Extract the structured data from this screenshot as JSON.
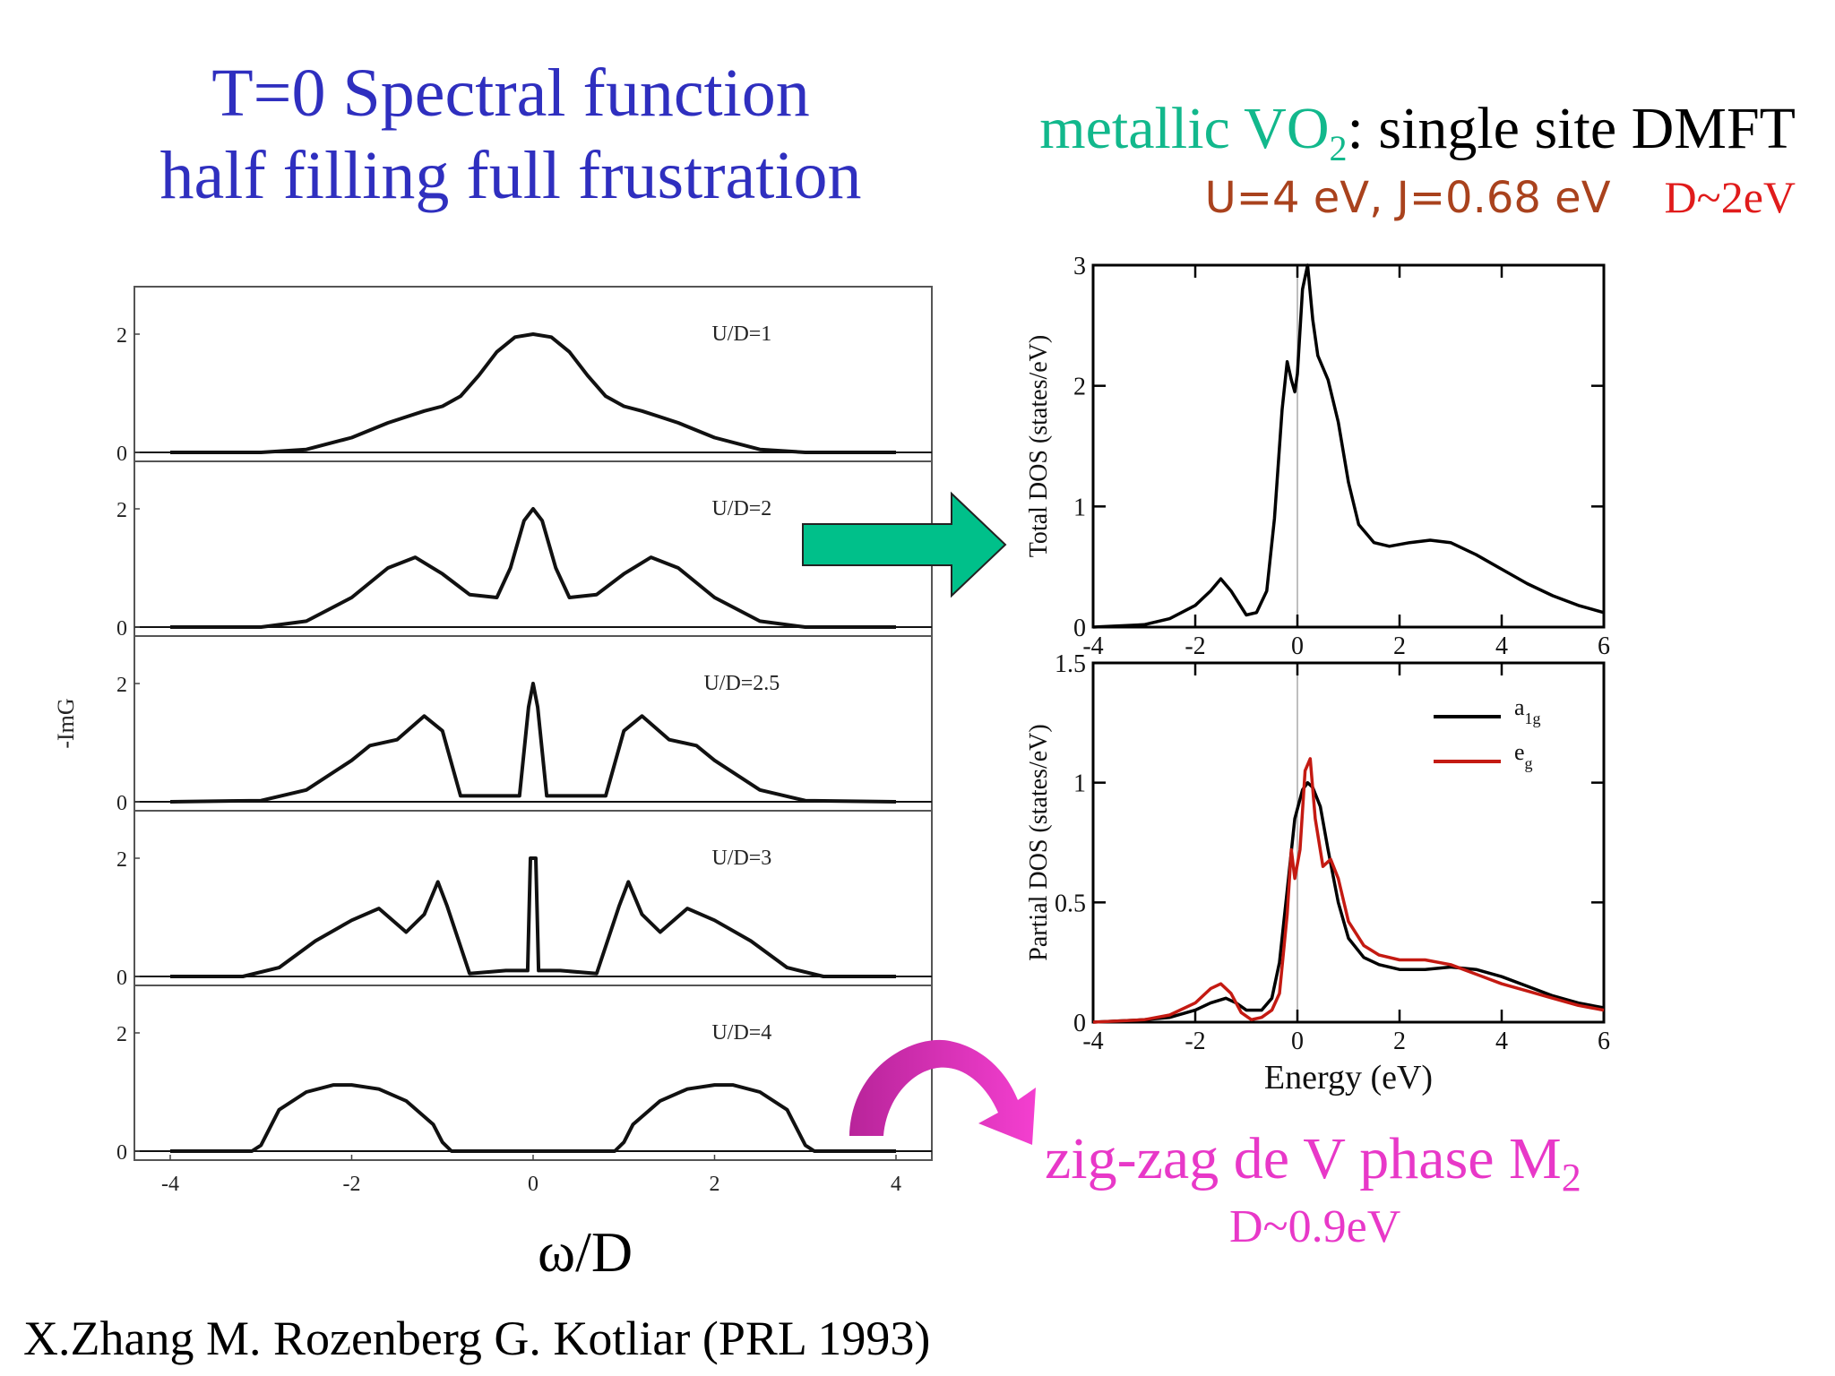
{
  "titles": {
    "left_line1": "T=0 Spectral function",
    "left_line2": "half filling full frustration",
    "right_prefix": "metallic ",
    "right_vo": "VO",
    "right_sub": "2",
    "right_suffix": ": single site DMFT",
    "params_u": "U=4 eV, J=0.68 eV",
    "params_d": "D~2eV",
    "zigzag_main": "zig-zag de V phase M",
    "zigzag_sub": "2",
    "zigzag_d": "D~0.9eV",
    "omega_label": "ω/D",
    "citation": "X.Zhang M. Rozenberg G. Kotliar (PRL 1993)"
  },
  "colors": {
    "title_blue": "#2f2fbf",
    "teal": "#12b88c",
    "params_brown": "#a9421d",
    "red": "#e01b1b",
    "magenta": "#e838c8",
    "arrow_green": "#00c08a",
    "eg_red": "#c41a12"
  },
  "chart_data": [
    {
      "type": "line",
      "title": "",
      "ylabel": "-ImG",
      "xlabel": "ω/D",
      "xlim": [
        -4,
        4
      ],
      "xticks": [
        "-4",
        "-2",
        "0",
        "2",
        "4"
      ],
      "ylim": [
        0,
        2.5
      ],
      "yticks": [
        "0",
        "2"
      ],
      "panels": [
        {
          "label": "U/D=1",
          "x": [
            -4,
            -3.0,
            -2.5,
            -2.0,
            -1.6,
            -1.4,
            -1.2,
            -1.0,
            -0.8,
            -0.6,
            -0.4,
            -0.2,
            0,
            0.2,
            0.4,
            0.6,
            0.8,
            1.0,
            1.2,
            1.4,
            1.6,
            2.0,
            2.5,
            3.0,
            4
          ],
          "y": [
            0,
            0,
            0.05,
            0.25,
            0.5,
            0.6,
            0.7,
            0.78,
            0.95,
            1.3,
            1.7,
            1.95,
            2.0,
            1.95,
            1.7,
            1.3,
            0.95,
            0.78,
            0.7,
            0.6,
            0.5,
            0.25,
            0.05,
            0,
            0
          ]
        },
        {
          "label": "U/D=2",
          "x": [
            -4,
            -3.0,
            -2.5,
            -2.0,
            -1.6,
            -1.3,
            -1.0,
            -0.7,
            -0.4,
            -0.25,
            -0.1,
            0,
            0.1,
            0.25,
            0.4,
            0.7,
            1.0,
            1.3,
            1.6,
            2.0,
            2.5,
            3.0,
            4
          ],
          "y": [
            0,
            0,
            0.1,
            0.5,
            1.0,
            1.18,
            0.9,
            0.55,
            0.5,
            1.0,
            1.8,
            2.0,
            1.8,
            1.0,
            0.5,
            0.55,
            0.9,
            1.18,
            1.0,
            0.5,
            0.1,
            0,
            0
          ]
        },
        {
          "label": "U/D=2.5",
          "x": [
            -4,
            -3.0,
            -2.5,
            -2.0,
            -1.8,
            -1.5,
            -1.2,
            -1.0,
            -0.8,
            -0.4,
            -0.15,
            -0.05,
            0,
            0.05,
            0.15,
            0.4,
            0.8,
            1.0,
            1.2,
            1.5,
            1.8,
            2.0,
            2.5,
            3.0,
            4
          ],
          "y": [
            0,
            0.02,
            0.2,
            0.7,
            0.95,
            1.05,
            1.45,
            1.2,
            0.1,
            0.1,
            0.1,
            1.6,
            2.0,
            1.6,
            0.1,
            0.1,
            0.1,
            1.2,
            1.45,
            1.05,
            0.95,
            0.7,
            0.2,
            0.02,
            0
          ]
        },
        {
          "label": "U/D=3",
          "x": [
            -4,
            -3.2,
            -2.8,
            -2.4,
            -2.0,
            -1.7,
            -1.4,
            -1.2,
            -1.05,
            -0.95,
            -0.7,
            -0.3,
            -0.06,
            -0.03,
            0.03,
            0.06,
            0.3,
            0.7,
            0.95,
            1.05,
            1.2,
            1.4,
            1.7,
            2.0,
            2.4,
            2.8,
            3.2,
            4
          ],
          "y": [
            0,
            0,
            0.15,
            0.6,
            0.95,
            1.15,
            0.75,
            1.05,
            1.6,
            1.2,
            0.05,
            0.1,
            0.1,
            2.0,
            2.0,
            0.1,
            0.1,
            0.05,
            1.2,
            1.6,
            1.05,
            0.75,
            1.15,
            0.95,
            0.6,
            0.15,
            0,
            0
          ]
        },
        {
          "label": "U/D=4",
          "x": [
            -4,
            -3.1,
            -3.0,
            -2.8,
            -2.5,
            -2.2,
            -2.0,
            -1.7,
            -1.4,
            -1.1,
            -1.0,
            -0.9,
            0.9,
            1.0,
            1.1,
            1.4,
            1.7,
            2.0,
            2.2,
            2.5,
            2.8,
            3.0,
            3.1,
            4
          ],
          "y": [
            0,
            0,
            0.1,
            0.7,
            1.0,
            1.12,
            1.12,
            1.05,
            0.85,
            0.45,
            0.15,
            0,
            0,
            0.15,
            0.45,
            0.85,
            1.05,
            1.12,
            1.12,
            1.0,
            0.7,
            0.1,
            0,
            0
          ]
        }
      ]
    },
    {
      "type": "line",
      "title": "",
      "xlabel": "",
      "ylabel": "Total DOS (states/eV)",
      "xlim": [
        -4,
        6
      ],
      "xticks": [
        "-4",
        "-2",
        "0",
        "2",
        "4",
        "6"
      ],
      "ylim": [
        0,
        3
      ],
      "yticks": [
        "0",
        "1",
        "2",
        "3"
      ],
      "series": [
        {
          "x": [
            -4,
            -3.0,
            -2.5,
            -2.0,
            -1.7,
            -1.5,
            -1.3,
            -1.0,
            -0.8,
            -0.6,
            -0.45,
            -0.3,
            -0.2,
            -0.12,
            -0.05,
            0,
            0.1,
            0.2,
            0.3,
            0.4,
            0.6,
            0.8,
            1.0,
            1.2,
            1.5,
            1.8,
            2.2,
            2.6,
            3.0,
            3.5,
            4.0,
            4.5,
            5.0,
            5.5,
            6.0
          ],
          "y": [
            0,
            0.02,
            0.07,
            0.18,
            0.3,
            0.4,
            0.3,
            0.1,
            0.12,
            0.3,
            0.9,
            1.8,
            2.2,
            2.05,
            1.95,
            2.1,
            2.8,
            3.0,
            2.55,
            2.25,
            2.05,
            1.7,
            1.2,
            0.85,
            0.7,
            0.67,
            0.7,
            0.72,
            0.7,
            0.6,
            0.48,
            0.36,
            0.26,
            0.18,
            0.12
          ]
        }
      ]
    },
    {
      "type": "line",
      "title": "",
      "xlabel": "Energy (eV)",
      "ylabel": "Partial DOS (states/eV)",
      "xlim": [
        -4,
        6
      ],
      "xticks": [
        "-4",
        "-2",
        "0",
        "2",
        "4",
        "6"
      ],
      "ylim": [
        0,
        1.5
      ],
      "yticks": [
        "0",
        "0.5",
        "1",
        "1.5"
      ],
      "legend_position": "top-right",
      "series": [
        {
          "name": "a",
          "name_sub": "1g",
          "color": "#000000",
          "x": [
            -4,
            -3.0,
            -2.5,
            -2.0,
            -1.7,
            -1.4,
            -1.2,
            -1.0,
            -0.7,
            -0.5,
            -0.35,
            -0.2,
            -0.05,
            0.1,
            0.2,
            0.3,
            0.45,
            0.6,
            0.8,
            1.0,
            1.3,
            1.6,
            2.0,
            2.5,
            3.0,
            3.5,
            4.0,
            4.5,
            5.0,
            5.5,
            6.0
          ],
          "y": [
            0,
            0.01,
            0.02,
            0.05,
            0.08,
            0.1,
            0.08,
            0.05,
            0.05,
            0.1,
            0.25,
            0.55,
            0.85,
            0.97,
            1.0,
            0.98,
            0.9,
            0.72,
            0.5,
            0.35,
            0.27,
            0.24,
            0.22,
            0.22,
            0.23,
            0.22,
            0.19,
            0.15,
            0.11,
            0.08,
            0.06
          ]
        },
        {
          "name": "e",
          "name_sub": "g",
          "color": "#c41a12",
          "x": [
            -4,
            -3.0,
            -2.5,
            -2.0,
            -1.7,
            -1.5,
            -1.3,
            -1.1,
            -0.9,
            -0.7,
            -0.5,
            -0.35,
            -0.2,
            -0.12,
            -0.05,
            0.05,
            0.15,
            0.25,
            0.35,
            0.5,
            0.65,
            0.8,
            1.0,
            1.3,
            1.6,
            2.0,
            2.5,
            3.0,
            3.5,
            4.0,
            4.5,
            5.0,
            5.5,
            6.0
          ],
          "y": [
            0,
            0.01,
            0.03,
            0.08,
            0.14,
            0.16,
            0.12,
            0.04,
            0.01,
            0.02,
            0.05,
            0.12,
            0.45,
            0.72,
            0.6,
            0.72,
            1.05,
            1.1,
            0.85,
            0.65,
            0.68,
            0.6,
            0.42,
            0.32,
            0.28,
            0.26,
            0.26,
            0.24,
            0.2,
            0.16,
            0.13,
            0.1,
            0.07,
            0.05
          ]
        }
      ]
    }
  ]
}
